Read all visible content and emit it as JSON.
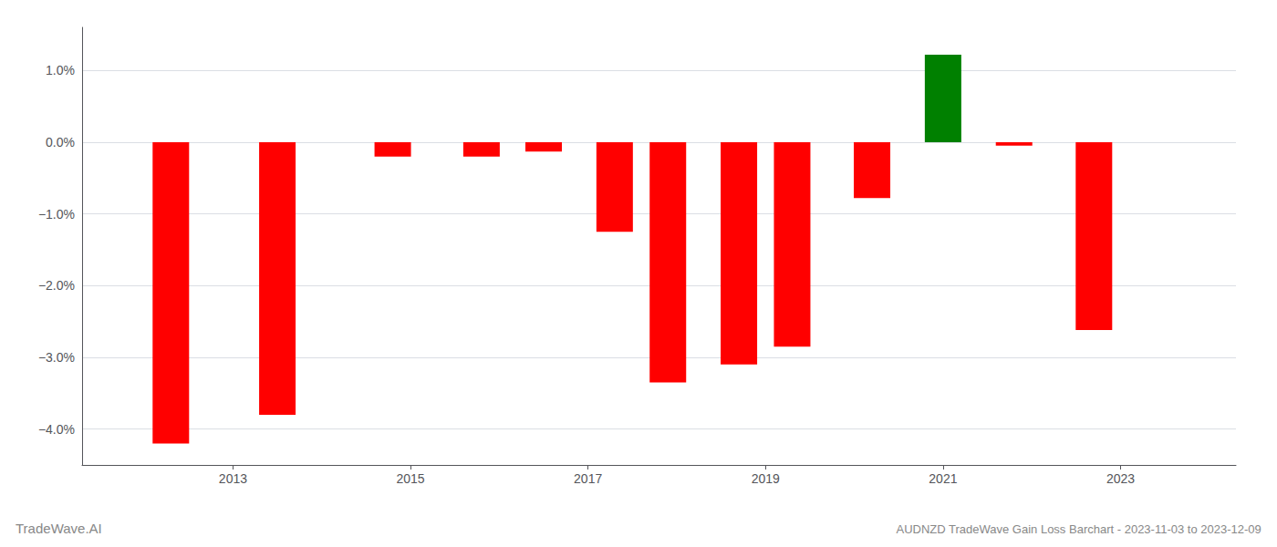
{
  "chart_data": {
    "type": "bar",
    "title": "AUDNZD TradeWave Gain Loss Barchart - 2023-11-03 to 2023-12-09",
    "annotations": [
      "TradeWave.AI"
    ],
    "x": [
      2012.3,
      2013.5,
      2014.8,
      2015.8,
      2016.5,
      2017.3,
      2017.9,
      2018.7,
      2019.3,
      2020.2,
      2021.0,
      2021.8,
      2022.7
    ],
    "values": [
      -4.2,
      -3.8,
      -0.2,
      -0.2,
      -0.13,
      -1.25,
      -3.35,
      -3.1,
      -2.85,
      -0.78,
      1.22,
      -0.05,
      -2.62
    ],
    "colors": [
      "#ff0000",
      "#ff0000",
      "#ff0000",
      "#ff0000",
      "#ff0000",
      "#ff0000",
      "#ff0000",
      "#ff0000",
      "#ff0000",
      "#ff0000",
      "#008000",
      "#ff0000",
      "#ff0000"
    ],
    "xlim": [
      2011.3,
      2024.3
    ],
    "xticks": [
      2013,
      2015,
      2017,
      2019,
      2021,
      2023
    ],
    "ylim": [
      -4.5,
      1.6
    ],
    "yticks": [
      {
        "value": -4.0,
        "label": "−4.0%"
      },
      {
        "value": -3.0,
        "label": "−3.0%"
      },
      {
        "value": -2.0,
        "label": "−2.0%"
      },
      {
        "value": -1.0,
        "label": "−1.0%"
      },
      {
        "value": 0.0,
        "label": "0.0%"
      },
      {
        "value": 1.0,
        "label": "1.0%"
      }
    ],
    "grid": true
  }
}
